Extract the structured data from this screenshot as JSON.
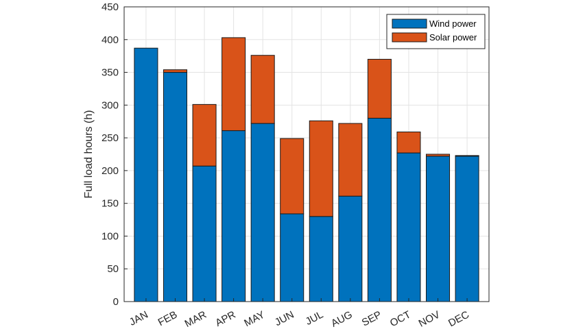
{
  "chart_data": {
    "type": "bar",
    "stacked": true,
    "categories": [
      "JAN",
      "FEB",
      "MAR",
      "APR",
      "MAY",
      "JUN",
      "JUL",
      "AUG",
      "SEP",
      "OCT",
      "NOV",
      "DEC"
    ],
    "series": [
      {
        "name": "Wind power",
        "color": "#0072BD",
        "values": [
          387,
          350,
          207,
          261,
          272,
          134,
          130,
          161,
          280,
          227,
          222,
          222
        ]
      },
      {
        "name": "Solar power",
        "color": "#D95319",
        "values": [
          0,
          4,
          94,
          142,
          104,
          115,
          146,
          111,
          90,
          32,
          3,
          1
        ]
      }
    ],
    "title": "",
    "xlabel": "",
    "ylabel": "Full load hours (h)",
    "ylim": [
      0,
      450
    ],
    "yticks": [
      0,
      50,
      100,
      150,
      200,
      250,
      300,
      350,
      400,
      450
    ],
    "grid": true,
    "legend_position": "top-right"
  }
}
